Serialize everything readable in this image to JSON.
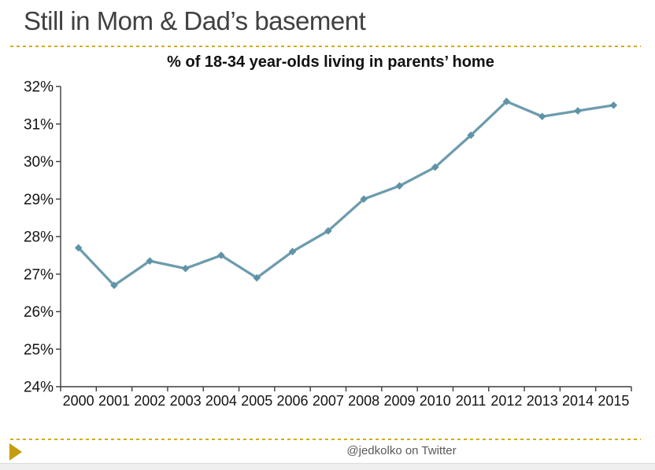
{
  "header": {
    "title": "Still in Mom & Dad’s basement"
  },
  "footer": {
    "attribution": "@jedkolko on Twitter"
  },
  "accent": {
    "gold_dash_color": "#d3ac14",
    "gold_arrow_color": "#c49d0e"
  },
  "chart_data": {
    "type": "line",
    "title": "% of 18-34 year-olds living in parents’ home",
    "categories": [
      "2000",
      "2001",
      "2002",
      "2003",
      "2004",
      "2005",
      "2006",
      "2007",
      "2008",
      "2009",
      "2010",
      "2011",
      "2012",
      "2013",
      "2014",
      "2015"
    ],
    "values": [
      27.7,
      26.7,
      27.35,
      27.15,
      27.5,
      26.9,
      27.6,
      28.15,
      29.0,
      29.35,
      29.85,
      30.7,
      31.6,
      31.2,
      31.35,
      31.5
    ],
    "xlabel": "",
    "ylabel": "",
    "ylim": [
      24,
      32
    ],
    "y_tick_step": 1,
    "y_tick_labels": [
      "24%",
      "25%",
      "26%",
      "27%",
      "28%",
      "29%",
      "30%",
      "31%",
      "32%"
    ],
    "grid": false,
    "legend": "none",
    "line_color": "#6d9cad",
    "marker_color": "#5f93a6",
    "marker_shape": "diamond"
  }
}
